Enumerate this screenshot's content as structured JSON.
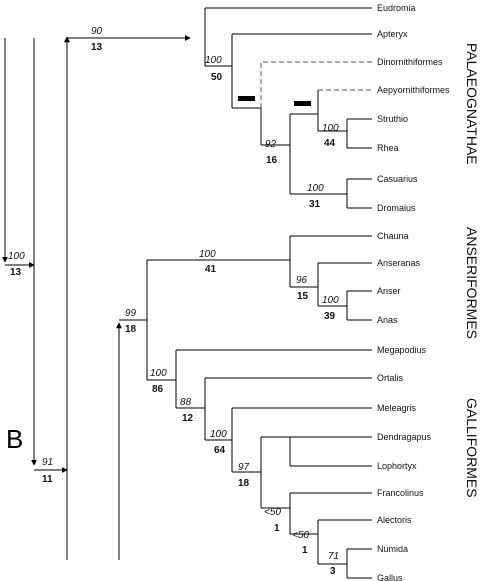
{
  "panel_label": "B",
  "taxa": {
    "eudromia": "Eudromia",
    "apteryx": "Apteryx",
    "dinornithiformes": "Dinornithiformes",
    "aepyornithiformes": "Aepyornithiformes",
    "struthio": "Struthio",
    "rhea": "Rhea",
    "casuarius": "Casuarius",
    "dromaius": "Dromaius",
    "chauna": "Chauna",
    "anseranas": "Anseranas",
    "anser": "Anser",
    "anas": "Anas",
    "megapodius": "Megapodius",
    "ortalis": "Ortalis",
    "meleagris": "Meleagris",
    "dendragapus": "Dendragapus",
    "lophortyx": "Lophortyx",
    "francolinus": "Francolinus",
    "alectoris": "Alectoris",
    "numida": "Numida",
    "gallus": "Gallus"
  },
  "groups": {
    "palaeognathae": "PALAEOGNATHAE",
    "anseriformes": "ANSERIFORMES",
    "galliformes": "GALLIFORMES"
  },
  "nodes": {
    "palaeognathae": {
      "bootstrap": "90",
      "decay": "13"
    },
    "apteryx_clade": {
      "bootstrap": "100",
      "decay": "50"
    },
    "struthio_rhea_cas": {
      "bootstrap": "92",
      "decay": "16"
    },
    "struthio_rhea": {
      "bootstrap": "100",
      "decay": "44"
    },
    "casuarius_dromaius": {
      "bootstrap": "100",
      "decay": "31"
    },
    "anseriformes": {
      "bootstrap": "100",
      "decay": "41"
    },
    "anseranas_clade": {
      "bootstrap": "96",
      "decay": "15"
    },
    "anser_anas": {
      "bootstrap": "100",
      "decay": "39"
    },
    "galloanserae": {
      "bootstrap": "99",
      "decay": "18"
    },
    "galliformes": {
      "bootstrap": "100",
      "decay": "86"
    },
    "ortalis_clade": {
      "bootstrap": "88",
      "decay": "12"
    },
    "meleagris_clade": {
      "bootstrap": "100",
      "decay": "64"
    },
    "dendragapus_clade": {
      "bootstrap": "97",
      "decay": "18"
    },
    "francolinus_clade": {
      "bootstrap": "<50",
      "decay": "1"
    },
    "alectoris_clade": {
      "bootstrap": "<50",
      "decay": "1"
    },
    "numida_gallus": {
      "bootstrap": "71",
      "decay": "3"
    },
    "root_left": {
      "bootstrap": "100",
      "decay": "13"
    },
    "root_mid": {
      "bootstrap": "91",
      "decay": "11"
    }
  }
}
